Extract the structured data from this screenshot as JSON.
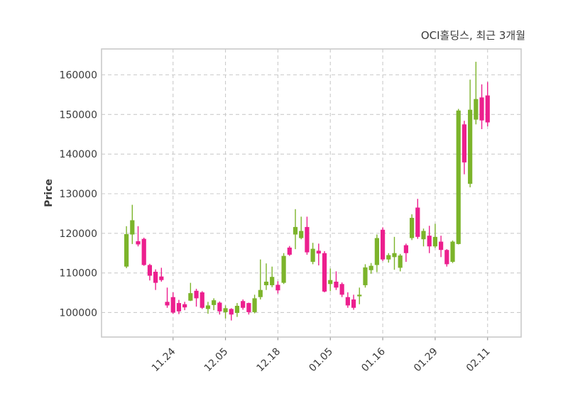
{
  "chart_data": {
    "type": "candlestick",
    "title": "OCI홀딩스, 최근 3개월",
    "ylabel": "Price",
    "grid": true,
    "ylim": [
      93800,
      166600
    ],
    "y_ticks": [
      100000,
      110000,
      120000,
      130000,
      140000,
      150000,
      160000
    ],
    "x_tick_labels": [
      "11.24",
      "12.05",
      "12.18",
      "01.05",
      "01.16",
      "01.29",
      "02.11"
    ],
    "x_tick_indices": [
      8,
      17,
      26,
      35,
      44,
      53,
      62
    ],
    "up_color": "#7cb42b",
    "down_color": "#ec1f8e",
    "grid_color": "#cbcbcb",
    "border_color": "#c9c9c9",
    "text_color": "#3a3a3a",
    "candle_order": [
      "open",
      "high",
      "low",
      "close"
    ],
    "candles": [
      [
        111600,
        121800,
        111200,
        119800
      ],
      [
        119700,
        127200,
        117300,
        123300
      ],
      [
        118000,
        121800,
        116700,
        117200
      ],
      [
        118600,
        118900,
        111800,
        112000
      ],
      [
        112000,
        112300,
        108100,
        109300
      ],
      [
        110300,
        110900,
        105700,
        107500
      ],
      [
        109100,
        111300,
        107800,
        108200
      ],
      [
        102700,
        106300,
        101200,
        101800
      ],
      [
        103900,
        105100,
        99700,
        100000
      ],
      [
        102400,
        103200,
        99600,
        100300
      ],
      [
        102100,
        102700,
        100600,
        101300
      ],
      [
        103000,
        107500,
        102900,
        104900
      ],
      [
        105500,
        106000,
        101500,
        103600
      ],
      [
        105100,
        105400,
        100900,
        101200
      ],
      [
        100900,
        102700,
        99700,
        101800
      ],
      [
        101900,
        103600,
        100600,
        103100
      ],
      [
        102500,
        102800,
        99500,
        100300
      ],
      [
        100100,
        101800,
        98500,
        101100
      ],
      [
        100900,
        101100,
        98000,
        99500
      ],
      [
        99900,
        102400,
        98900,
        101700
      ],
      [
        102900,
        103300,
        100700,
        101200
      ],
      [
        102400,
        102500,
        99500,
        100100
      ],
      [
        100100,
        104500,
        99800,
        103600
      ],
      [
        103900,
        113400,
        103300,
        105700
      ],
      [
        106900,
        112400,
        105700,
        107800
      ],
      [
        106900,
        111600,
        106400,
        109000
      ],
      [
        107000,
        107900,
        104800,
        105600
      ],
      [
        107500,
        115000,
        107200,
        114300
      ],
      [
        116400,
        116800,
        114300,
        114600
      ],
      [
        119700,
        126100,
        116000,
        121600
      ],
      [
        118800,
        124200,
        118500,
        120600
      ],
      [
        121600,
        124200,
        114600,
        115200
      ],
      [
        112800,
        117600,
        112200,
        116100
      ],
      [
        115600,
        117400,
        111900,
        114900
      ],
      [
        115000,
        115500,
        105100,
        105300
      ],
      [
        107200,
        111100,
        105400,
        108200
      ],
      [
        107800,
        110400,
        105700,
        106300
      ],
      [
        107200,
        107600,
        103900,
        104500
      ],
      [
        103900,
        105100,
        101200,
        101800
      ],
      [
        103300,
        104500,
        100700,
        101200
      ],
      [
        104100,
        106300,
        102100,
        104500
      ],
      [
        106900,
        112200,
        106300,
        111400
      ],
      [
        110700,
        112500,
        109800,
        111800
      ],
      [
        112000,
        119700,
        110200,
        118800
      ],
      [
        120900,
        121500,
        113000,
        113400
      ],
      [
        113400,
        115000,
        112600,
        114500
      ],
      [
        114000,
        119100,
        110800,
        115000
      ],
      [
        111300,
        114800,
        110400,
        114400
      ],
      [
        117000,
        117400,
        112800,
        115000
      ],
      [
        118800,
        124800,
        118300,
        123900
      ],
      [
        126500,
        128700,
        118600,
        119100
      ],
      [
        118500,
        121200,
        116700,
        120600
      ],
      [
        119400,
        121900,
        115000,
        116700
      ],
      [
        116700,
        122400,
        116300,
        119100
      ],
      [
        117900,
        119400,
        114000,
        115800
      ],
      [
        115800,
        116000,
        111600,
        112200
      ],
      [
        112800,
        118200,
        112500,
        117900
      ],
      [
        117300,
        151400,
        117200,
        151000
      ],
      [
        147500,
        148400,
        134900,
        137900
      ],
      [
        132500,
        158800,
        131600,
        151200
      ],
      [
        148700,
        163300,
        147500,
        153900
      ],
      [
        154300,
        157600,
        146300,
        148500
      ],
      [
        154800,
        158200,
        147000,
        148000
      ]
    ]
  }
}
